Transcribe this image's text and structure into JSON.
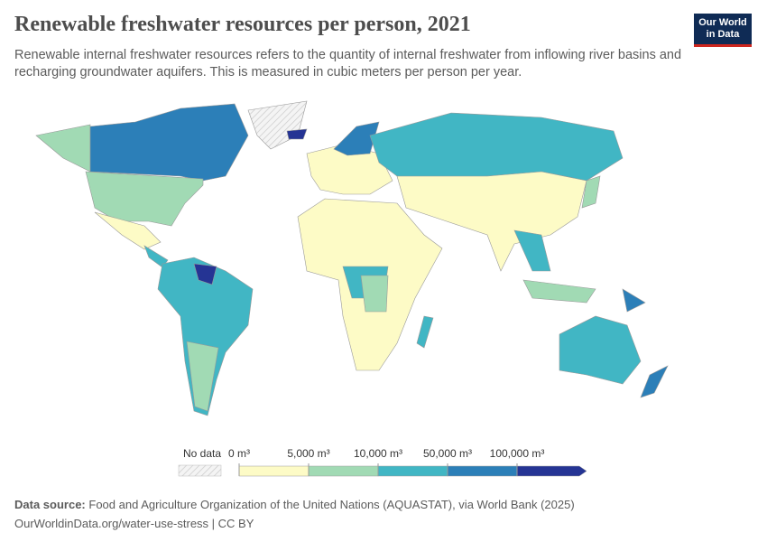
{
  "header": {
    "title": "Renewable freshwater resources per person, 2021",
    "subtitle": "Renewable internal freshwater resources refers to the quantity of internal freshwater from inflowing river basins and recharging groundwater aquifers. This is measured in cubic meters per person per year.",
    "logo": [
      "Our World",
      "in Data"
    ]
  },
  "legend": {
    "no_data": "No data",
    "bins": [
      {
        "value": 0,
        "label": "0 m³"
      },
      {
        "value": 5000,
        "label": "5,000 m³"
      },
      {
        "value": 10000,
        "label": "10,000 m³"
      },
      {
        "value": 50000,
        "label": "50,000 m³"
      },
      {
        "value": 100000,
        "label": "100,000 m³"
      }
    ],
    "colors": [
      "#fdfbc6",
      "#a1dab4",
      "#41b6c4",
      "#2c7fb8",
      "#253494"
    ]
  },
  "footer": {
    "source_label": "Data source:",
    "source": "Food and Agriculture Organization of the United Nations (AQUASTAT), via World Bank (2025)",
    "url": "OurWorldinData.org/water-use-stress | CC BY"
  }
}
